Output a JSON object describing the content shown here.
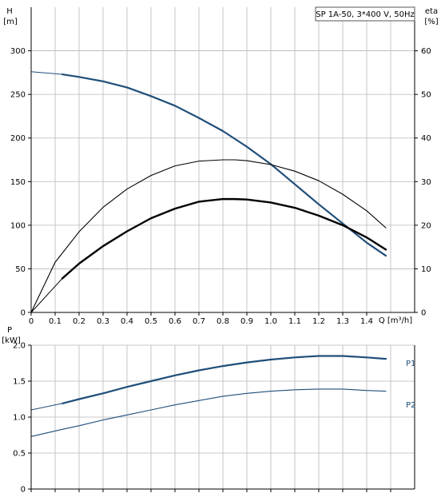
{
  "chart_data": [
    {
      "type": "line",
      "title": "SP 1A-50, 3*400 V, 50Hz",
      "ylabel": "H",
      "yunit": "[m]",
      "y2label": "eta",
      "y2unit": "[%]",
      "xlabel": "Q [m³/h]",
      "xlim": [
        0,
        1.6
      ],
      "ylim": [
        0,
        350
      ],
      "y2lim": [
        0,
        70
      ],
      "xticks": [
        "0",
        "0.1",
        "0.2",
        "0.3",
        "0.4",
        "0.5",
        "0.6",
        "0.7",
        "0.8",
        "0.9",
        "1.0",
        "1.1",
        "1.2",
        "1.3",
        "1.4"
      ],
      "yticks": [
        "0",
        "50",
        "100",
        "150",
        "200",
        "250",
        "300"
      ],
      "y2ticks": [
        "0",
        "10",
        "20",
        "30",
        "40",
        "50",
        "60"
      ],
      "grid": true,
      "series": [
        {
          "axis": "left",
          "color": "#1f4e79",
          "x": [
            0,
            0.13,
            0.2,
            0.3,
            0.4,
            0.5,
            0.6,
            0.7,
            0.8,
            0.9,
            1.0,
            1.1,
            1.2,
            1.3,
            1.4,
            1.48
          ],
          "y": [
            276,
            273,
            270,
            265,
            258,
            248,
            237,
            223,
            208,
            190,
            170,
            147,
            124,
            102,
            80,
            65
          ],
          "dashed_x_end": 0.13
        },
        {
          "axis": "right",
          "color": "#000000",
          "x": [
            0,
            0.13,
            0.2,
            0.3,
            0.4,
            0.5,
            0.6,
            0.7,
            0.8,
            0.85,
            0.9,
            1.0,
            1.1,
            1.2,
            1.3,
            1.4,
            1.48
          ],
          "y": [
            0,
            7.8,
            11.2,
            15.2,
            18.6,
            21.6,
            23.8,
            25.4,
            26.0,
            26.0,
            25.9,
            25.2,
            24.0,
            22.2,
            20.0,
            17.2,
            14.4
          ],
          "dashed_x_end": 0.13
        },
        {
          "axis": "right",
          "color": "#000000",
          "x": [
            0,
            0.1,
            0.2,
            0.3,
            0.4,
            0.5,
            0.6,
            0.7,
            0.8,
            0.85,
            0.9,
            1.0,
            1.1,
            1.2,
            1.3,
            1.4,
            1.48
          ],
          "y": [
            0,
            11.5,
            18.5,
            24.1,
            28.3,
            31.4,
            33.6,
            34.7,
            35.0,
            35.0,
            34.8,
            33.9,
            32.4,
            30.2,
            27.1,
            23.3,
            19.4
          ],
          "dashed_x_end": 0
        }
      ]
    },
    {
      "type": "line",
      "ylabel": "P",
      "yunit": "[kW]",
      "xlim": [
        0,
        1.6
      ],
      "ylim": [
        0,
        2.0
      ],
      "yticks": [
        "0",
        "0.5",
        "1.0",
        "1.5",
        "2.0"
      ],
      "grid": true,
      "series": [
        {
          "name": "P1",
          "color": "#1f4e79",
          "x": [
            0,
            0.13,
            0.2,
            0.3,
            0.4,
            0.5,
            0.6,
            0.7,
            0.8,
            0.9,
            1.0,
            1.1,
            1.2,
            1.3,
            1.4,
            1.48
          ],
          "y": [
            1.1,
            1.19,
            1.25,
            1.33,
            1.42,
            1.5,
            1.58,
            1.65,
            1.71,
            1.76,
            1.8,
            1.83,
            1.85,
            1.85,
            1.83,
            1.81
          ],
          "dashed_x_end": 0.13
        },
        {
          "name": "P2",
          "color": "#1f4e79",
          "x": [
            0,
            0.13,
            0.2,
            0.3,
            0.4,
            0.5,
            0.6,
            0.7,
            0.8,
            0.9,
            1.0,
            1.1,
            1.2,
            1.3,
            1.4,
            1.48
          ],
          "y": [
            0.73,
            0.83,
            0.88,
            0.96,
            1.03,
            1.1,
            1.17,
            1.23,
            1.29,
            1.33,
            1.36,
            1.38,
            1.39,
            1.39,
            1.37,
            1.36
          ],
          "dashed_x_end": 0
        }
      ]
    }
  ]
}
